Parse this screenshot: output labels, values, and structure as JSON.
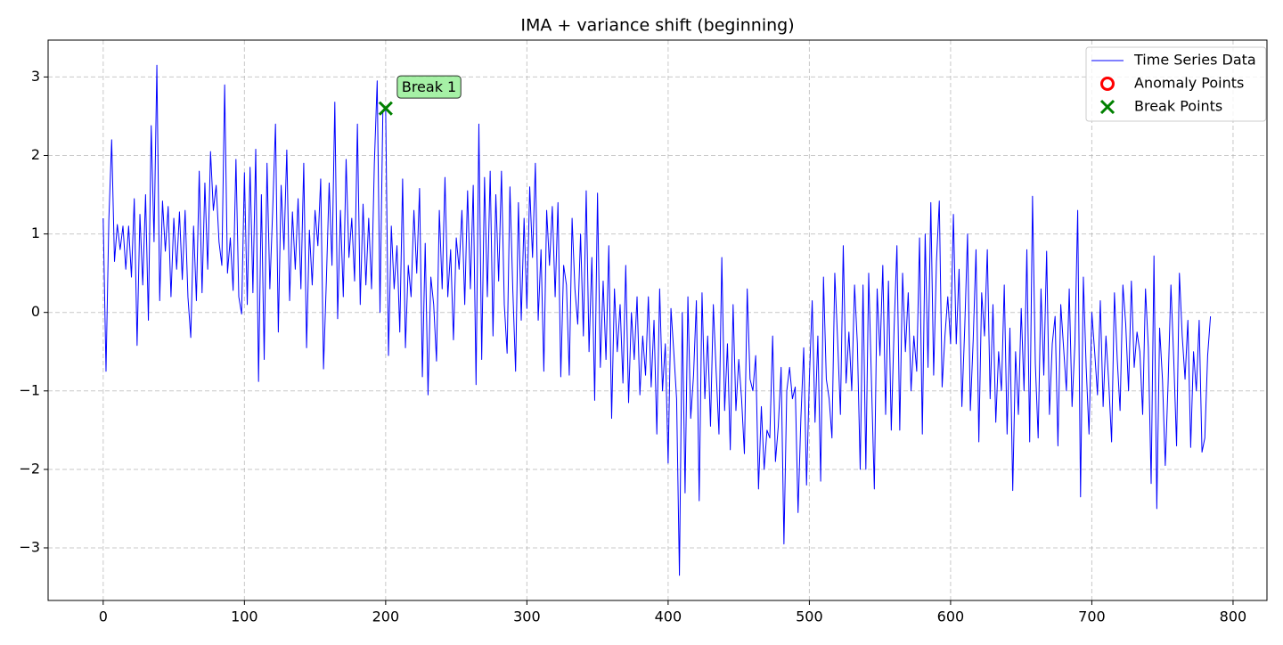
{
  "chart_data": {
    "type": "line",
    "title": "IMA + variance shift (beginning)",
    "xlim": [
      -39,
      824
    ],
    "ylim": [
      -3.67,
      3.47
    ],
    "xticks": [
      0,
      100,
      200,
      300,
      400,
      500,
      600,
      700,
      800
    ],
    "yticks": [
      {
        "value": -3,
        "label": "−3"
      },
      {
        "value": -2,
        "label": "−2"
      },
      {
        "value": -1,
        "label": "−1"
      },
      0,
      1,
      2,
      3
    ],
    "grid": true,
    "legend": "upper right",
    "series": [
      {
        "name": "Time Series Data",
        "color": "#0000ff",
        "x": [
          0,
          2,
          4,
          6,
          8,
          10,
          12,
          14,
          16,
          18,
          20,
          22,
          24,
          26,
          28,
          30,
          32,
          34,
          36,
          38,
          40,
          42,
          44,
          46,
          48,
          50,
          52,
          54,
          56,
          58,
          60,
          62,
          64,
          66,
          68,
          70,
          72,
          74,
          76,
          78,
          80,
          82,
          84,
          86,
          88,
          90,
          92,
          94,
          96,
          98,
          100,
          102,
          104,
          106,
          108,
          110,
          112,
          114,
          116,
          118,
          120,
          122,
          124,
          126,
          128,
          130,
          132,
          134,
          136,
          138,
          140,
          142,
          144,
          146,
          148,
          150,
          152,
          154,
          156,
          158,
          160,
          162,
          164,
          166,
          168,
          170,
          172,
          174,
          176,
          178,
          180,
          182,
          184,
          186,
          188,
          190,
          192,
          194,
          196,
          198,
          200,
          202,
          204,
          206,
          208,
          210,
          212,
          214,
          216,
          218,
          220,
          222,
          224,
          226,
          228,
          230,
          232,
          234,
          236,
          238,
          240,
          242,
          244,
          246,
          248,
          250,
          252,
          254,
          256,
          258,
          260,
          262,
          264,
          266,
          268,
          270,
          272,
          274,
          276,
          278,
          280,
          282,
          284,
          286,
          288,
          290,
          292,
          294,
          296,
          298,
          300,
          302,
          304,
          306,
          308,
          310,
          312,
          314,
          316,
          318,
          320,
          322,
          324,
          326,
          328,
          330,
          332,
          334,
          336,
          338,
          340,
          342,
          344,
          346,
          348,
          350,
          352,
          354,
          356,
          358,
          360,
          362,
          364,
          366,
          368,
          370,
          372,
          374,
          376,
          378,
          380,
          382,
          384,
          386,
          388,
          390,
          392,
          394,
          396,
          398,
          400,
          402,
          404,
          406,
          408,
          410,
          412,
          414,
          416,
          418,
          420,
          422,
          424,
          426,
          428,
          430,
          432,
          434,
          436,
          438,
          440,
          442,
          444,
          446,
          448,
          450,
          452,
          454,
          456,
          458,
          460,
          462,
          464,
          466,
          468,
          470,
          472,
          474,
          476,
          478,
          480,
          482,
          484,
          486,
          488,
          490,
          492,
          494,
          496,
          498,
          500,
          502,
          504,
          506,
          508,
          510,
          512,
          514,
          516,
          518,
          520,
          522,
          524,
          526,
          528,
          530,
          532,
          534,
          536,
          538,
          540,
          542,
          544,
          546,
          548,
          550,
          552,
          554,
          556,
          558,
          560,
          562,
          564,
          566,
          568,
          570,
          572,
          574,
          576,
          578,
          580,
          582,
          584,
          586,
          588,
          590,
          592,
          594,
          596,
          598,
          600,
          602,
          604,
          606,
          608,
          610,
          612,
          614,
          616,
          618,
          620,
          622,
          624,
          626,
          628,
          630,
          632,
          634,
          636,
          638,
          640,
          642,
          644,
          646,
          648,
          650,
          652,
          654,
          656,
          658,
          660,
          662,
          664,
          666,
          668,
          670,
          672,
          674,
          676,
          678,
          680,
          682,
          684,
          686,
          688,
          690,
          692,
          694,
          696,
          698,
          700,
          702,
          704,
          706,
          708,
          710,
          712,
          714,
          716,
          718,
          720,
          722,
          724,
          726,
          728,
          730,
          732,
          734,
          736,
          738,
          740,
          742,
          744,
          746,
          748,
          750,
          752,
          754,
          756,
          758,
          760,
          762,
          764,
          766,
          768,
          770,
          772,
          774,
          776,
          778,
          780,
          782,
          784
        ],
        "values": [
          1.2,
          -0.75,
          1.18,
          2.2,
          0.65,
          1.12,
          0.8,
          1.1,
          0.55,
          1.1,
          0.45,
          1.45,
          -0.42,
          1.25,
          0.35,
          1.5,
          -0.1,
          2.38,
          0.9,
          3.15,
          0.15,
          1.42,
          0.78,
          1.35,
          0.2,
          1.2,
          0.55,
          1.28,
          0.42,
          1.3,
          0.2,
          -0.32,
          1.1,
          0.15,
          1.8,
          0.25,
          1.65,
          0.55,
          2.05,
          1.3,
          1.62,
          0.9,
          0.6,
          2.9,
          0.5,
          0.95,
          0.28,
          1.95,
          0.2,
          -0.02,
          1.78,
          0.1,
          1.85,
          0.25,
          2.08,
          -0.88,
          1.5,
          -0.6,
          1.9,
          0.3,
          1.3,
          2.4,
          -0.25,
          1.62,
          0.8,
          2.07,
          0.15,
          1.28,
          0.55,
          1.45,
          0.3,
          1.9,
          -0.45,
          1.05,
          0.35,
          1.3,
          0.85,
          1.7,
          -0.72,
          0.4,
          1.65,
          0.6,
          2.68,
          -0.08,
          1.3,
          0.2,
          1.95,
          0.7,
          1.2,
          0.4,
          2.4,
          0.1,
          1.38,
          0.35,
          1.2,
          0.3,
          1.9,
          2.95,
          0.0,
          2.55,
          2.6,
          -0.55,
          1.1,
          0.3,
          0.85,
          -0.25,
          1.7,
          -0.45,
          0.6,
          0.2,
          1.3,
          0.5,
          1.58,
          -0.82,
          0.88,
          -1.05,
          0.45,
          0.1,
          -0.62,
          1.3,
          0.3,
          1.72,
          0.2,
          0.8,
          -0.35,
          0.95,
          0.55,
          1.3,
          0.1,
          1.55,
          0.3,
          1.62,
          -0.92,
          2.4,
          -0.6,
          1.72,
          0.2,
          1.8,
          -0.3,
          1.5,
          0.4,
          1.8,
          0.1,
          -0.52,
          1.6,
          0.3,
          -0.75,
          1.4,
          -0.1,
          1.2,
          0.05,
          1.6,
          0.7,
          1.9,
          -0.1,
          0.8,
          -0.75,
          1.3,
          0.6,
          1.35,
          0.2,
          1.4,
          -0.82,
          0.6,
          0.35,
          -0.8,
          1.2,
          0.3,
          -0.15,
          1.0,
          -0.3,
          1.55,
          -0.5,
          0.7,
          -1.12,
          1.52,
          -0.7,
          0.4,
          -0.6,
          0.85,
          -1.35,
          0.3,
          -0.5,
          0.1,
          -0.9,
          0.6,
          -1.15,
          0.0,
          -0.6,
          0.2,
          -1.05,
          -0.3,
          -0.8,
          0.2,
          -0.95,
          -0.1,
          -1.55,
          0.3,
          -1.0,
          -0.4,
          -1.92,
          0.05,
          -0.5,
          -1.1,
          -3.35,
          0.0,
          -2.3,
          0.2,
          -1.35,
          -0.8,
          0.15,
          -2.4,
          0.25,
          -1.1,
          -0.3,
          -1.45,
          0.1,
          -0.75,
          -1.55,
          0.7,
          -1.25,
          -0.4,
          -1.75,
          0.1,
          -1.25,
          -0.6,
          -1.1,
          -1.8,
          0.3,
          -0.85,
          -1.0,
          -0.55,
          -2.25,
          -1.2,
          -2.0,
          -1.5,
          -1.6,
          -0.3,
          -1.9,
          -1.45,
          -0.7,
          -2.95,
          -1.0,
          -0.7,
          -1.1,
          -0.95,
          -2.55,
          -1.35,
          -0.45,
          -2.2,
          -0.85,
          0.15,
          -1.4,
          -0.3,
          -2.15,
          0.45,
          -0.85,
          -1.1,
          -1.6,
          0.5,
          -0.35,
          -1.3,
          0.85,
          -0.9,
          -0.25,
          -1.0,
          0.35,
          -0.4,
          -2.0,
          0.35,
          -2.0,
          0.5,
          -0.9,
          -2.25,
          0.3,
          -0.55,
          0.6,
          -1.3,
          0.4,
          -1.5,
          -0.2,
          0.85,
          -1.5,
          0.5,
          -0.5,
          0.25,
          -1.0,
          -0.3,
          -0.75,
          0.95,
          -1.55,
          1.0,
          -0.7,
          1.4,
          -0.8,
          0.65,
          1.42,
          -0.95,
          -0.3,
          0.2,
          -0.4,
          1.25,
          -0.4,
          0.55,
          -1.2,
          -0.2,
          1.0,
          -1.25,
          -0.35,
          0.8,
          -1.65,
          0.25,
          -0.3,
          0.8,
          -1.1,
          0.1,
          -1.4,
          -0.5,
          -1.0,
          0.35,
          -1.55,
          -0.2,
          -2.27,
          -0.5,
          -1.3,
          0.05,
          -1.0,
          0.8,
          -1.65,
          1.48,
          -0.65,
          -1.6,
          0.3,
          -0.8,
          0.78,
          -1.3,
          -0.4,
          -0.05,
          -1.7,
          0.1,
          -0.45,
          -1.0,
          0.3,
          -1.2,
          -0.4,
          1.3,
          -2.35,
          0.45,
          -0.7,
          -1.55,
          0.0,
          -0.5,
          -1.05,
          0.15,
          -1.2,
          -0.3,
          -0.9,
          -1.65,
          0.25,
          -0.6,
          -1.25,
          0.35,
          -0.15,
          -1.0,
          0.4,
          -0.7,
          -0.25,
          -0.5,
          -1.3,
          0.3,
          -0.45,
          -2.18,
          0.72,
          -2.5,
          -0.2,
          -0.85,
          -1.95,
          -0.9,
          0.35,
          -0.6,
          -1.7,
          0.5,
          -0.3,
          -0.85,
          -0.1,
          -1.72,
          -0.5,
          -1.0,
          -0.1,
          -1.78,
          -1.6,
          -0.55,
          -0.05
        ]
      },
      {
        "name": "Anomaly Points",
        "color": "#ff0000",
        "marker": "o",
        "x": [],
        "values": []
      },
      {
        "name": "Break Points",
        "color": "#008000",
        "marker": "x",
        "x": [
          200
        ],
        "values": [
          2.6
        ]
      }
    ],
    "annotations": [
      {
        "text": "Break 1",
        "series": 2,
        "index": 0
      }
    ]
  }
}
